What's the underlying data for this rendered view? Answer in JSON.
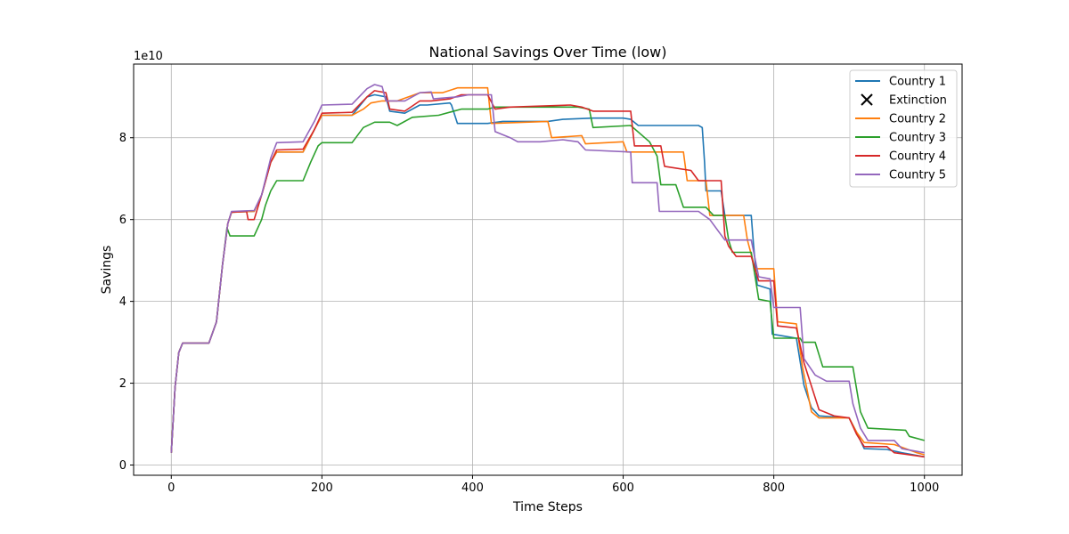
{
  "chart_data": {
    "type": "line",
    "title": "National Savings Over Time (low)",
    "xlabel": "Time Steps",
    "ylabel": "Savings",
    "y_scale_label": "1e10",
    "xlim": [
      -50,
      1050
    ],
    "ylim": [
      -0.25,
      9.8
    ],
    "x_ticks": [
      0,
      200,
      400,
      600,
      800,
      1000
    ],
    "y_ticks": [
      0,
      2,
      4,
      6,
      8
    ],
    "grid": true,
    "legend_position": "top-right",
    "legend": [
      "Country 1",
      "Extinction",
      "Country 2",
      "Country 3",
      "Country 4",
      "Country 5"
    ],
    "extinction_marker": {
      "label": "Extinction",
      "symbol": "x",
      "color": "#000000"
    },
    "series": [
      {
        "name": "Country 1",
        "color": "#1f77b4",
        "points": [
          [
            0,
            0.3
          ],
          [
            5,
            1.9
          ],
          [
            10,
            2.75
          ],
          [
            15,
            2.98
          ],
          [
            50,
            2.98
          ],
          [
            60,
            3.5
          ],
          [
            68,
            4.9
          ],
          [
            75,
            5.9
          ],
          [
            80,
            6.18
          ],
          [
            110,
            6.2
          ],
          [
            120,
            6.6
          ],
          [
            132,
            7.4
          ],
          [
            140,
            7.65
          ],
          [
            175,
            7.65
          ],
          [
            190,
            8.2
          ],
          [
            200,
            8.55
          ],
          [
            240,
            8.55
          ],
          [
            260,
            9.0
          ],
          [
            270,
            9.05
          ],
          [
            285,
            9.0
          ],
          [
            290,
            8.65
          ],
          [
            310,
            8.6
          ],
          [
            330,
            8.8
          ],
          [
            340,
            8.8
          ],
          [
            370,
            8.85
          ],
          [
            372,
            8.8
          ],
          [
            380,
            8.35
          ],
          [
            420,
            8.35
          ],
          [
            440,
            8.4
          ],
          [
            500,
            8.4
          ],
          [
            520,
            8.45
          ],
          [
            560,
            8.48
          ],
          [
            600,
            8.48
          ],
          [
            610,
            8.45
          ],
          [
            620,
            8.3
          ],
          [
            700,
            8.3
          ],
          [
            705,
            8.25
          ],
          [
            708,
            7.4
          ],
          [
            710,
            6.7
          ],
          [
            730,
            6.7
          ],
          [
            735,
            6.1
          ],
          [
            770,
            6.1
          ],
          [
            773,
            5.4
          ],
          [
            778,
            4.4
          ],
          [
            795,
            4.3
          ],
          [
            798,
            3.2
          ],
          [
            830,
            3.1
          ],
          [
            840,
            1.95
          ],
          [
            850,
            1.4
          ],
          [
            860,
            1.2
          ],
          [
            900,
            1.15
          ],
          [
            910,
            0.8
          ],
          [
            920,
            0.4
          ],
          [
            950,
            0.38
          ],
          [
            970,
            0.3
          ],
          [
            1000,
            0.2
          ]
        ]
      },
      {
        "name": "Country 2",
        "color": "#ff7f0e",
        "points": [
          [
            0,
            0.3
          ],
          [
            5,
            1.9
          ],
          [
            10,
            2.75
          ],
          [
            15,
            2.98
          ],
          [
            50,
            2.98
          ],
          [
            60,
            3.5
          ],
          [
            68,
            4.9
          ],
          [
            75,
            5.9
          ],
          [
            80,
            6.18
          ],
          [
            110,
            6.2
          ],
          [
            120,
            6.6
          ],
          [
            132,
            7.4
          ],
          [
            140,
            7.65
          ],
          [
            175,
            7.65
          ],
          [
            190,
            8.2
          ],
          [
            200,
            8.55
          ],
          [
            240,
            8.55
          ],
          [
            255,
            8.7
          ],
          [
            265,
            8.85
          ],
          [
            280,
            8.9
          ],
          [
            300,
            8.9
          ],
          [
            330,
            9.1
          ],
          [
            360,
            9.1
          ],
          [
            380,
            9.22
          ],
          [
            420,
            9.22
          ],
          [
            425,
            8.35
          ],
          [
            500,
            8.4
          ],
          [
            505,
            8.0
          ],
          [
            545,
            8.05
          ],
          [
            550,
            7.85
          ],
          [
            600,
            7.9
          ],
          [
            605,
            7.65
          ],
          [
            680,
            7.65
          ],
          [
            685,
            6.95
          ],
          [
            710,
            6.95
          ],
          [
            715,
            6.1
          ],
          [
            760,
            6.1
          ],
          [
            765,
            5.5
          ],
          [
            775,
            4.8
          ],
          [
            800,
            4.8
          ],
          [
            805,
            3.5
          ],
          [
            830,
            3.45
          ],
          [
            838,
            2.4
          ],
          [
            850,
            1.3
          ],
          [
            860,
            1.15
          ],
          [
            900,
            1.15
          ],
          [
            910,
            0.8
          ],
          [
            920,
            0.55
          ],
          [
            960,
            0.5
          ],
          [
            990,
            0.3
          ],
          [
            1000,
            0.25
          ]
        ]
      },
      {
        "name": "Country 3",
        "color": "#2ca02c",
        "points": [
          [
            0,
            0.3
          ],
          [
            5,
            1.9
          ],
          [
            10,
            2.75
          ],
          [
            15,
            2.98
          ],
          [
            50,
            2.98
          ],
          [
            60,
            3.5
          ],
          [
            68,
            4.9
          ],
          [
            74,
            5.8
          ],
          [
            78,
            5.6
          ],
          [
            110,
            5.6
          ],
          [
            120,
            6.0
          ],
          [
            125,
            6.35
          ],
          [
            132,
            6.7
          ],
          [
            140,
            6.95
          ],
          [
            175,
            6.95
          ],
          [
            185,
            7.4
          ],
          [
            195,
            7.8
          ],
          [
            200,
            7.88
          ],
          [
            240,
            7.88
          ],
          [
            255,
            8.25
          ],
          [
            270,
            8.38
          ],
          [
            290,
            8.38
          ],
          [
            300,
            8.3
          ],
          [
            320,
            8.5
          ],
          [
            355,
            8.55
          ],
          [
            385,
            8.7
          ],
          [
            420,
            8.7
          ],
          [
            430,
            8.75
          ],
          [
            540,
            8.75
          ],
          [
            555,
            8.7
          ],
          [
            560,
            8.25
          ],
          [
            610,
            8.3
          ],
          [
            635,
            7.9
          ],
          [
            645,
            7.55
          ],
          [
            650,
            6.85
          ],
          [
            670,
            6.85
          ],
          [
            680,
            6.3
          ],
          [
            710,
            6.3
          ],
          [
            720,
            6.1
          ],
          [
            735,
            6.1
          ],
          [
            740,
            5.5
          ],
          [
            745,
            5.2
          ],
          [
            770,
            5.2
          ],
          [
            780,
            4.05
          ],
          [
            795,
            4.0
          ],
          [
            800,
            3.1
          ],
          [
            835,
            3.1
          ],
          [
            838,
            3.0
          ],
          [
            855,
            3.0
          ],
          [
            865,
            2.4
          ],
          [
            905,
            2.4
          ],
          [
            915,
            1.3
          ],
          [
            925,
            0.9
          ],
          [
            975,
            0.85
          ],
          [
            980,
            0.7
          ],
          [
            1000,
            0.6
          ]
        ]
      },
      {
        "name": "Country 4",
        "color": "#d62728",
        "points": [
          [
            0,
            0.3
          ],
          [
            5,
            1.9
          ],
          [
            10,
            2.75
          ],
          [
            15,
            2.98
          ],
          [
            50,
            2.98
          ],
          [
            60,
            3.5
          ],
          [
            68,
            4.9
          ],
          [
            75,
            5.9
          ],
          [
            80,
            6.18
          ],
          [
            100,
            6.2
          ],
          [
            102,
            6.0
          ],
          [
            110,
            6.0
          ],
          [
            120,
            6.6
          ],
          [
            132,
            7.4
          ],
          [
            140,
            7.7
          ],
          [
            175,
            7.72
          ],
          [
            190,
            8.2
          ],
          [
            200,
            8.6
          ],
          [
            240,
            8.62
          ],
          [
            260,
            9.0
          ],
          [
            270,
            9.15
          ],
          [
            285,
            9.1
          ],
          [
            290,
            8.7
          ],
          [
            310,
            8.65
          ],
          [
            330,
            8.9
          ],
          [
            345,
            8.9
          ],
          [
            370,
            8.95
          ],
          [
            385,
            9.05
          ],
          [
            420,
            9.05
          ],
          [
            430,
            8.7
          ],
          [
            450,
            8.75
          ],
          [
            530,
            8.8
          ],
          [
            545,
            8.75
          ],
          [
            560,
            8.65
          ],
          [
            610,
            8.65
          ],
          [
            615,
            7.8
          ],
          [
            650,
            7.8
          ],
          [
            655,
            7.3
          ],
          [
            690,
            7.2
          ],
          [
            700,
            6.95
          ],
          [
            730,
            6.95
          ],
          [
            735,
            5.6
          ],
          [
            740,
            5.35
          ],
          [
            750,
            5.1
          ],
          [
            770,
            5.1
          ],
          [
            780,
            4.5
          ],
          [
            800,
            4.5
          ],
          [
            805,
            3.4
          ],
          [
            830,
            3.35
          ],
          [
            840,
            2.5
          ],
          [
            860,
            1.35
          ],
          [
            880,
            1.2
          ],
          [
            900,
            1.15
          ],
          [
            910,
            0.75
          ],
          [
            920,
            0.45
          ],
          [
            950,
            0.45
          ],
          [
            960,
            0.3
          ],
          [
            1000,
            0.2
          ]
        ]
      },
      {
        "name": "Country 5",
        "color": "#9467bd",
        "points": [
          [
            0,
            0.3
          ],
          [
            5,
            1.9
          ],
          [
            10,
            2.75
          ],
          [
            15,
            2.98
          ],
          [
            50,
            2.98
          ],
          [
            60,
            3.5
          ],
          [
            68,
            4.9
          ],
          [
            75,
            5.9
          ],
          [
            80,
            6.2
          ],
          [
            110,
            6.22
          ],
          [
            120,
            6.6
          ],
          [
            132,
            7.5
          ],
          [
            140,
            7.88
          ],
          [
            175,
            7.9
          ],
          [
            190,
            8.4
          ],
          [
            200,
            8.8
          ],
          [
            240,
            8.82
          ],
          [
            260,
            9.2
          ],
          [
            270,
            9.3
          ],
          [
            280,
            9.25
          ],
          [
            285,
            8.9
          ],
          [
            310,
            8.9
          ],
          [
            330,
            9.1
          ],
          [
            345,
            9.12
          ],
          [
            348,
            8.95
          ],
          [
            380,
            9.0
          ],
          [
            395,
            9.05
          ],
          [
            425,
            9.05
          ],
          [
            430,
            8.15
          ],
          [
            450,
            8.0
          ],
          [
            460,
            7.9
          ],
          [
            490,
            7.9
          ],
          [
            520,
            7.95
          ],
          [
            540,
            7.9
          ],
          [
            550,
            7.7
          ],
          [
            610,
            7.65
          ],
          [
            612,
            6.9
          ],
          [
            645,
            6.9
          ],
          [
            648,
            6.2
          ],
          [
            700,
            6.2
          ],
          [
            715,
            6.0
          ],
          [
            735,
            5.5
          ],
          [
            770,
            5.5
          ],
          [
            780,
            4.6
          ],
          [
            795,
            4.55
          ],
          [
            800,
            3.85
          ],
          [
            835,
            3.85
          ],
          [
            840,
            2.6
          ],
          [
            855,
            2.2
          ],
          [
            870,
            2.05
          ],
          [
            900,
            2.05
          ],
          [
            905,
            1.5
          ],
          [
            915,
            0.9
          ],
          [
            925,
            0.6
          ],
          [
            960,
            0.6
          ],
          [
            970,
            0.4
          ],
          [
            1000,
            0.3
          ]
        ]
      }
    ]
  }
}
